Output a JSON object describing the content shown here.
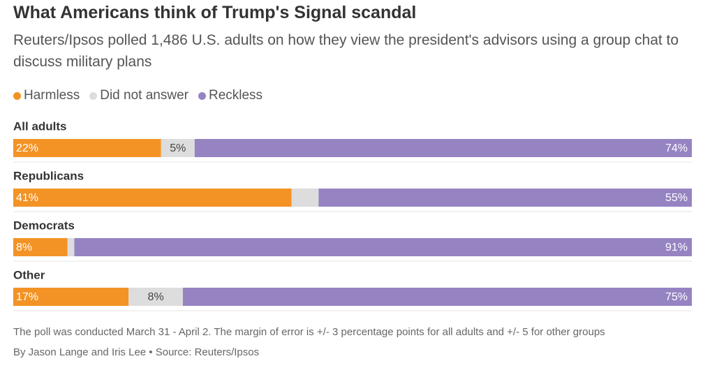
{
  "chart_data": {
    "type": "stacked-bar",
    "orientation": "horizontal",
    "title": "What Americans think of Trump's Signal scandal",
    "subtitle": "Reuters/Ipsos polled 1,486 U.S. adults on how they view the president's advisors using a group chat to discuss military plans",
    "categories": [
      "All adults",
      "Republicans",
      "Democrats",
      "Other"
    ],
    "series": [
      {
        "name": "Harmless",
        "color": "#f39325",
        "values": [
          22,
          41,
          8,
          17
        ],
        "value_labels": [
          "22%",
          "41%",
          "8%",
          "17%"
        ]
      },
      {
        "name": "Did not answer",
        "color": "#dddddd",
        "values": [
          5,
          4,
          1,
          8
        ],
        "value_labels": [
          "5%",
          null,
          null,
          "8%"
        ]
      },
      {
        "name": "Reckless",
        "color": "#9683c2",
        "values": [
          74,
          55,
          91,
          75
        ],
        "value_labels": [
          "74%",
          "55%",
          "91%",
          "75%"
        ]
      }
    ],
    "note": "The poll was conducted March 31 - April 2. The margin of error is +/- 3 percentage points for all adults and +/- 5 for other groups",
    "byline": "By Jason Lange and Iris Lee • Source: Reuters/Ipsos"
  }
}
